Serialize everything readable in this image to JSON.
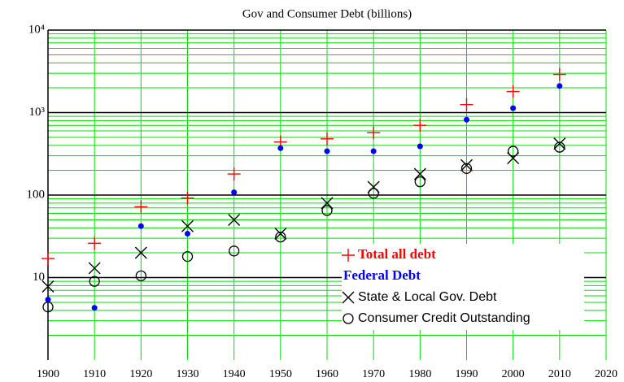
{
  "chart_data": {
    "type": "scatter",
    "title": "Gov and Consumer Debt (billions)",
    "x": [
      1900,
      1910,
      1920,
      1930,
      1940,
      1950,
      1960,
      1970,
      1980,
      1990,
      2000,
      2010
    ],
    "series": [
      {
        "name": "Total all debt",
        "color": "#ff0000",
        "marker": "plus",
        "values": [
          17,
          26,
          72,
          92,
          180,
          440,
          480,
          570,
          700,
          1250,
          1800,
          2900
        ]
      },
      {
        "name": "Federal Debt",
        "color": "#0000ff",
        "marker": "dot",
        "values": [
          5.4,
          4.3,
          42,
          34,
          108,
          370,
          340,
          340,
          390,
          820,
          1130,
          2100
        ]
      },
      {
        "name": "State & Local Gov. Debt",
        "color": "#000000",
        "marker": "x",
        "values": [
          7.8,
          13,
          20,
          42,
          50,
          34,
          80,
          125,
          180,
          230,
          280,
          420
        ]
      },
      {
        "name": "Consumer Credit Outstanding",
        "color": "#000000",
        "marker": "o",
        "values": [
          4.4,
          9,
          10.5,
          18,
          21,
          31,
          65,
          105,
          145,
          210,
          340,
          380
        ]
      }
    ],
    "xlim": [
      1900,
      2020
    ],
    "xticks": [
      1900,
      1910,
      1920,
      1930,
      1940,
      1950,
      1960,
      1970,
      1980,
      1990,
      2000,
      2010,
      2020
    ],
    "ylim": [
      1,
      10000
    ],
    "yticks": [
      10,
      100,
      {
        "value": 1000,
        "label": "10³"
      },
      {
        "value": 10000,
        "label": "10⁴"
      }
    ],
    "log_y": true,
    "grid": true,
    "grid_color": "#00dd00",
    "legend": "lower right"
  }
}
